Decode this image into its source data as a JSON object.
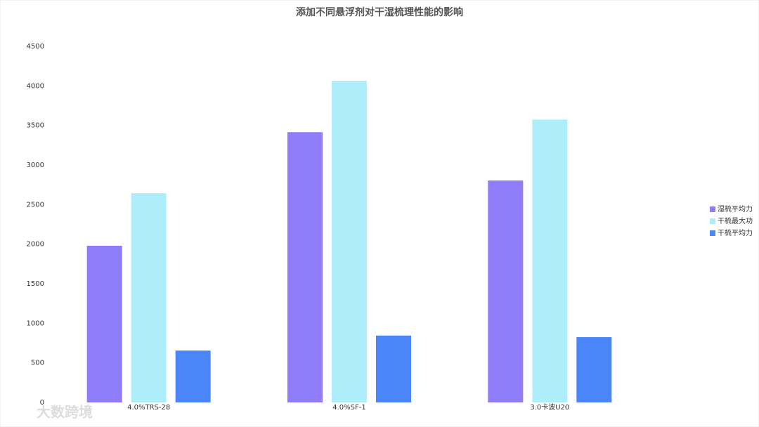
{
  "chart_data": {
    "type": "bar",
    "title": "添加不同悬浮剂对干湿梳理性能的影响",
    "categories": [
      "4.0%TRS-28",
      "4.0%SF-1",
      "3.0卡波U20"
    ],
    "series": [
      {
        "name": "湿梳平均力",
        "color": "#8e7cf8",
        "values": [
          1980,
          3415,
          2805
        ]
      },
      {
        "name": "干梳最大功",
        "color": "#aeeefa",
        "values": [
          2645,
          4065,
          3575
        ]
      },
      {
        "name": "干梳平均力",
        "color": "#4a86f7",
        "values": [
          655,
          845,
          825
        ]
      }
    ],
    "ylim": [
      0,
      4500
    ],
    "yticks": [
      0,
      500,
      1000,
      1500,
      2000,
      2500,
      3000,
      3500,
      4000,
      4500
    ],
    "grid": false,
    "legend": "right"
  },
  "watermark": "大数跨境"
}
